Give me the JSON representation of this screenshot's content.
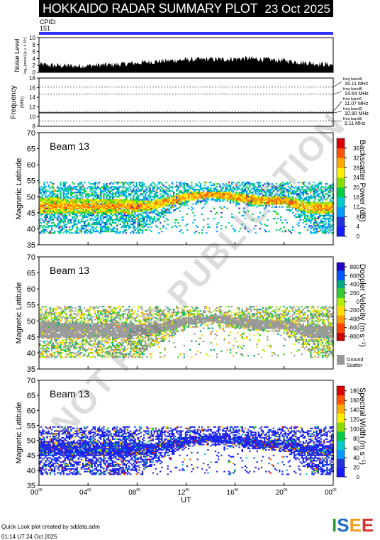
{
  "header": {
    "title": "HOKKAIDO RADAR SUMMARY PLOT",
    "date": "23 Oct 2025",
    "cpid_label": "CPID:",
    "cpid_value": "151"
  },
  "watermark": "NOT FOR PUBLICATION",
  "footer": {
    "created": "Quick Look plot created by sddata.adm",
    "timestamp": "01:14 UT 24 Oct 2025"
  },
  "logo": {
    "text": "ISEE",
    "colors": [
      "#2e9a3c",
      "#1f6bbf",
      "#e9a11e",
      "#d8322f"
    ]
  },
  "colors": {
    "noise": "#000000",
    "cpid_bar": "#3232ff",
    "ground_scatter": "#999999"
  },
  "chart_data": [
    {
      "type": "area",
      "name": "noise-panel",
      "ylabel": "Noise Level",
      "yunit": "log₁₀(noise) [a.u. x 10⁶]",
      "ylim": [
        0,
        10
      ],
      "yticks": [
        0,
        2,
        4,
        6,
        8,
        10
      ],
      "x_hours": [
        0,
        1,
        2,
        3,
        4,
        5,
        6,
        7,
        8,
        9,
        10,
        11,
        12,
        13,
        14,
        15,
        16,
        17,
        18,
        19,
        20,
        21,
        22,
        23,
        24
      ],
      "values": [
        2.3,
        2.0,
        1.9,
        1.8,
        1.9,
        2.1,
        2.2,
        2.4,
        2.7,
        3.0,
        3.2,
        3.4,
        3.6,
        3.7,
        3.8,
        3.7,
        3.9,
        4.0,
        3.8,
        3.6,
        3.4,
        3.0,
        2.7,
        2.4,
        2.2
      ]
    },
    {
      "type": "line",
      "name": "frequency-panel",
      "ylabel": "Frequency",
      "yunit": "(MHz)",
      "ylim": [
        8,
        18
      ],
      "yticks": [
        8,
        10,
        12,
        14,
        16,
        18
      ],
      "bands": [
        {
          "label": "freq bandA",
          "value_label": "16.11 MHz",
          "mhz": 16.11
        },
        {
          "label": "freq bandB",
          "value_label": "14.64 MHz",
          "mhz": 14.64
        },
        {
          "label": "freq bandC",
          "value_label": "11.07 MHz",
          "mhz": 11.07
        },
        {
          "label": "freq bandD",
          "value_label": "10.80 MHz",
          "mhz": 10.8
        },
        {
          "label": "freq bandE",
          "value_label": "9.11 MHz",
          "mhz": 9.11
        }
      ],
      "active_mhz": 10.8
    },
    {
      "type": "heatmap",
      "name": "power-panel",
      "beam_label": "Beam 13",
      "ylabel": "Magnetic Latitude",
      "ylim": [
        35,
        70
      ],
      "yticks": [
        35,
        40,
        45,
        50,
        55,
        60,
        65,
        70
      ],
      "colorbar_label": "Backscatter Power (dB)",
      "colorbar_ticks": [
        0,
        4,
        8,
        12,
        16,
        20,
        24,
        28,
        32,
        36
      ],
      "colorbar_range": [
        0,
        40
      ]
    },
    {
      "type": "heatmap",
      "name": "velocity-panel",
      "beam_label": "Beam 13",
      "ylabel": "Magnetic Latitude",
      "ylim": [
        35,
        70
      ],
      "yticks": [
        35,
        40,
        45,
        50,
        55,
        60,
        65,
        70
      ],
      "colorbar_label": "Doppler Velocity (m s⁻¹)",
      "colorbar_ticks": [
        -800,
        -600,
        -400,
        -200,
        0,
        200,
        400,
        600,
        800
      ],
      "colorbar_range": [
        -900,
        900
      ],
      "ground_label_1": "Ground",
      "ground_label_2": "Scatter"
    },
    {
      "type": "heatmap",
      "name": "width-panel",
      "beam_label": "Beam 13",
      "ylabel": "Magnetic Latitude",
      "ylim": [
        35,
        70
      ],
      "yticks": [
        35,
        40,
        45,
        50,
        55,
        60,
        65,
        70
      ],
      "colorbar_label": "Spectral Width (m s⁻¹)",
      "colorbar_ticks": [
        0,
        20,
        40,
        60,
        80,
        100,
        120,
        140,
        160,
        180
      ],
      "colorbar_range": [
        0,
        190
      ]
    }
  ],
  "time_axis": {
    "xlabel": "UT",
    "xlim": [
      0,
      24
    ],
    "ticks": [
      {
        "hour": 0,
        "label": "00"
      },
      {
        "hour": 4,
        "label": "04"
      },
      {
        "hour": 8,
        "label": "08"
      },
      {
        "hour": 12,
        "label": "12"
      },
      {
        "hour": 16,
        "label": "16"
      },
      {
        "hour": 20,
        "label": "20"
      },
      {
        "hour": 24,
        "label": "00"
      }
    ],
    "minute_suffix": "00",
    "scatter": {
      "top_lat": 54.5,
      "bottom_lat": 38.5,
      "ionosphere_band": [
        {
          "h": 0,
          "lo": 44.5,
          "hi": 49.5
        },
        {
          "h": 4,
          "lo": 44.5,
          "hi": 49.0
        },
        {
          "h": 7,
          "lo": 44.5,
          "hi": 49.0
        },
        {
          "h": 9,
          "lo": 45.5,
          "hi": 48.5
        },
        {
          "h": 12,
          "lo": 48.5,
          "hi": 51.0
        },
        {
          "h": 14,
          "lo": 49.5,
          "hi": 51.5
        },
        {
          "h": 16,
          "lo": 48.5,
          "hi": 51.0
        },
        {
          "h": 18,
          "lo": 47.0,
          "hi": 50.0
        },
        {
          "h": 20,
          "lo": 47.5,
          "hi": 50.0
        },
        {
          "h": 22,
          "lo": 44.5,
          "hi": 48.0
        },
        {
          "h": 24,
          "lo": 44.5,
          "hi": 48.0
        }
      ],
      "gap_region": [
        {
          "h": 8.5,
          "lat": 40
        },
        {
          "h": 12,
          "lat": 47.5
        },
        {
          "h": 14,
          "lat": 48.5
        },
        {
          "h": 17,
          "lat": 47
        },
        {
          "h": 20,
          "lat": 46
        },
        {
          "h": 22,
          "lat": 40
        }
      ]
    }
  }
}
